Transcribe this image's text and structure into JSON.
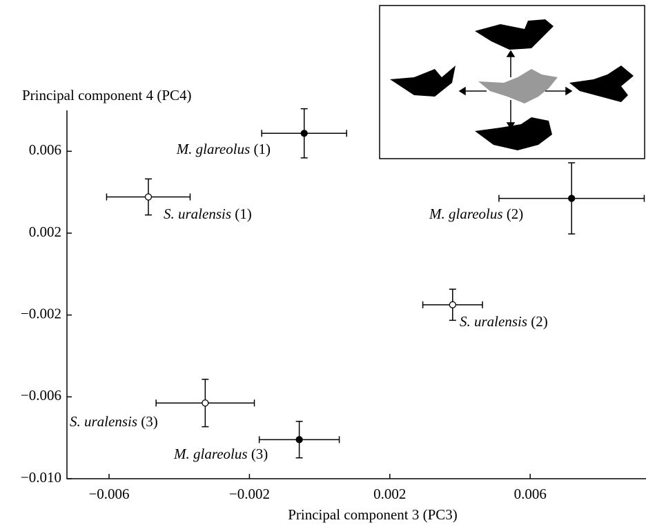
{
  "chart_data": {
    "type": "scatter",
    "xlabel": "Principal component 3 (PC3)",
    "ylabel": "Principal component 4 (PC4)",
    "xlim": [
      -0.0072,
      0.0093
    ],
    "ylim": [
      -0.01,
      0.008
    ],
    "xticks": [
      {
        "value": -0.006,
        "label": "−0.006"
      },
      {
        "value": -0.002,
        "label": "−0.002"
      },
      0.002,
      0.006
    ],
    "yticks": [
      0.006,
      0.002,
      {
        "value": -0.002,
        "label": "−0.002"
      },
      {
        "value": -0.006,
        "label": "−0.006"
      },
      {
        "value": -0.01,
        "label": "−0.010"
      }
    ],
    "points": [
      {
        "species": "M. glareolus",
        "group": "(1)",
        "filled": true,
        "x": -0.00044,
        "y": 0.00688,
        "xerr": 0.00121,
        "yerr": 0.0012
      },
      {
        "species": "S. uralensis",
        "group": "(1)",
        "filled": false,
        "x": -0.00488,
        "y": 0.00377,
        "xerr": 0.00119,
        "yerr": 0.00088
      },
      {
        "species": "M. glareolus",
        "group": "(2)",
        "filled": true,
        "x": 0.00718,
        "y": 0.0037,
        "xerr": 0.00207,
        "yerr": 0.00174
      },
      {
        "species": "S. uralensis",
        "group": "(2)",
        "filled": false,
        "x": 0.00379,
        "y": -0.0015,
        "xerr": 0.00085,
        "yerr": 0.00076
      },
      {
        "species": "S. uralensis",
        "group": "(3)",
        "filled": false,
        "x": -0.00326,
        "y": -0.0063,
        "xerr": 0.0014,
        "yerr": 0.00116
      },
      {
        "species": "M. glareolus",
        "group": "(3)",
        "filled": true,
        "x": -0.00058,
        "y": -0.00809,
        "xerr": 0.00114,
        "yerr": 0.00089
      }
    ]
  }
}
